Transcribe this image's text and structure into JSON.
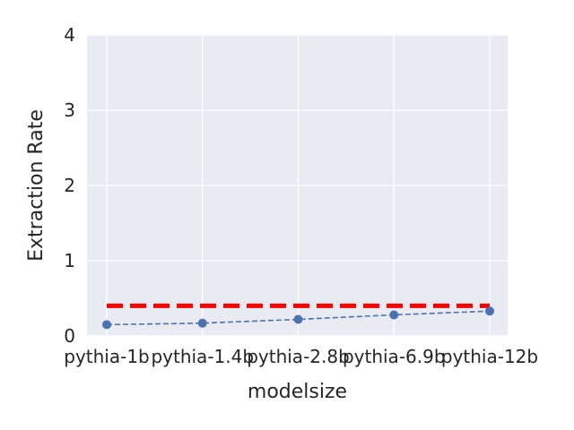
{
  "chart_data": {
    "type": "line",
    "title": "",
    "xlabel": "modelsize",
    "ylabel": "Extraction Rate",
    "categories": [
      "pythia-1b",
      "pythia-1.4b",
      "pythia-2.8b",
      "pythia-6.9b",
      "pythia-12b"
    ],
    "series": [
      {
        "values": [
          0.15,
          0.17,
          0.22,
          0.28,
          0.33
        ],
        "color": "#4c72b0",
        "style": "dashed line with circle markers"
      }
    ],
    "reference_line": {
      "value": 0.4,
      "color": "#ff0000",
      "style": "thick dashed horizontal line"
    },
    "ylim": [
      0,
      4
    ],
    "yticks": [
      "0",
      "1",
      "2",
      "3",
      "4"
    ],
    "grid": true,
    "legend": "none",
    "background_color": "#eaeaf2"
  }
}
